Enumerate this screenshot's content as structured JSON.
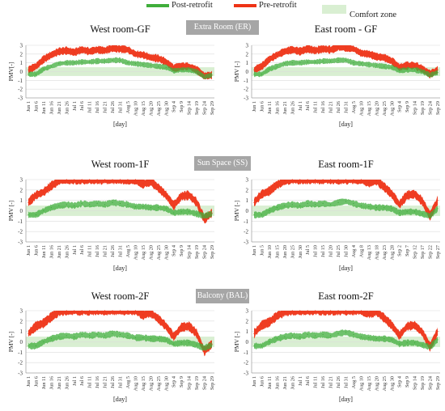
{
  "legend": {
    "post": {
      "label": "Post-retrofit",
      "color": "#3fae3b"
    },
    "pre": {
      "label": "Pre-retrofit",
      "color": "#ee3316"
    },
    "comfort": {
      "label": "Comfort zone",
      "color": "#d9efd2"
    }
  },
  "sections": [
    {
      "banner": "Extra Room (ER)"
    },
    {
      "banner": "Sun Space (SS)"
    },
    {
      "banner": "Balcony (BAL)"
    }
  ],
  "chart_data": [
    {
      "type": "area",
      "title": "West room-GF",
      "ylabel": "PMV[-]",
      "xlabel": "[day]",
      "ylim": [
        -3,
        3
      ],
      "comfort_zone": [
        -0.5,
        0.5
      ],
      "x": [
        "Jun 1",
        "Jun 6",
        "Jun 11",
        "Jun 16",
        "Jun 21",
        "Jun 26",
        "Jul 1",
        "Jul 6",
        "Jul 11",
        "Jul 16",
        "Jul 21",
        "Jul 26",
        "Jul 31",
        "Aug 5",
        "Aug 10",
        "Aug 15",
        "Aug 20",
        "Aug 25",
        "Aug 30",
        "Sep 4",
        "Sep 9",
        "Sep 14",
        "Sep 19",
        "Sep 24",
        "Sep 29"
      ],
      "series": [
        {
          "name": "Pre-retrofit",
          "values": [
            0.2,
            0.6,
            1.4,
            1.9,
            2.3,
            2.4,
            2.2,
            2.5,
            2.3,
            2.5,
            2.4,
            2.7,
            2.6,
            2.5,
            2.0,
            1.9,
            1.6,
            1.5,
            1.1,
            0.4,
            0.6,
            0.6,
            0.2,
            -0.5,
            -0.4
          ]
        },
        {
          "name": "Post-retrofit",
          "values": [
            -0.3,
            -0.3,
            0.3,
            0.6,
            0.9,
            1.0,
            1.0,
            1.1,
            1.1,
            1.2,
            1.2,
            1.3,
            1.3,
            1.0,
            0.9,
            0.8,
            0.7,
            0.6,
            0.5,
            0.1,
            0.2,
            0.2,
            0.0,
            -0.6,
            -0.4
          ]
        }
      ]
    },
    {
      "type": "area",
      "title": "East room - GF",
      "ylabel": "PMV [-]",
      "xlabel": "[day]",
      "ylim": [
        -3,
        3
      ],
      "comfort_zone": [
        -0.5,
        0.5
      ],
      "x": [
        "Jun 1",
        "Jun 6",
        "Jun 11",
        "Jun 16",
        "Jun 21",
        "Jun 26",
        "Jul 1",
        "Jul 6",
        "Jul 11",
        "Jul 16",
        "Jul 21",
        "Jul 26",
        "Jul 31",
        "Aug 5",
        "Aug 10",
        "Aug 15",
        "Aug 20",
        "Aug 25",
        "Aug 30",
        "Sep 4",
        "Sep 9",
        "Sep 14",
        "Sep 19",
        "Sep 24",
        "Sep 29"
      ],
      "series": [
        {
          "name": "Pre-retrofit",
          "values": [
            0.2,
            0.6,
            1.4,
            1.9,
            2.3,
            2.5,
            2.3,
            2.6,
            2.4,
            2.6,
            2.5,
            2.8,
            2.7,
            2.6,
            2.1,
            2.0,
            1.7,
            1.6,
            1.2,
            0.5,
            0.7,
            0.7,
            0.3,
            -0.3,
            0.2
          ]
        },
        {
          "name": "Post-retrofit",
          "values": [
            -0.3,
            -0.3,
            0.3,
            0.6,
            0.9,
            1.0,
            1.0,
            1.1,
            1.1,
            1.2,
            1.2,
            1.3,
            1.3,
            1.0,
            0.9,
            0.8,
            0.7,
            0.6,
            0.5,
            0.1,
            0.2,
            0.2,
            0.0,
            -0.4,
            -0.1
          ]
        }
      ]
    },
    {
      "type": "area",
      "title": "West room-1F",
      "ylabel": "PMV [-]",
      "xlabel": "[day]",
      "ylim": [
        -3,
        3
      ],
      "comfort_zone": [
        -0.5,
        0.5
      ],
      "x": [
        "Jun 1",
        "Jun 6",
        "Jun 11",
        "Jun 16",
        "Jun 21",
        "Jun 26",
        "Jul 1",
        "Jul 6",
        "Jul 11",
        "Jul 16",
        "Jul 21",
        "Jul 26",
        "Jul 31",
        "Aug 5",
        "Aug 10",
        "Aug 15",
        "Aug 20",
        "Aug 25",
        "Aug 30",
        "Sep 4",
        "Sep 9",
        "Sep 14",
        "Sep 19",
        "Sep 24",
        "Sep 29"
      ],
      "series": [
        {
          "name": "Pre-retrofit",
          "values": [
            0.8,
            1.5,
            1.8,
            2.4,
            2.9,
            3.0,
            3.0,
            3.0,
            3.0,
            3.0,
            3.0,
            3.0,
            3.0,
            3.0,
            3.0,
            2.6,
            2.8,
            2.2,
            1.5,
            0.5,
            1.4,
            1.5,
            0.8,
            -0.8,
            -0.2
          ]
        },
        {
          "name": "Post-retrofit",
          "values": [
            -0.4,
            -0.4,
            0.0,
            0.3,
            0.5,
            0.6,
            0.5,
            0.7,
            0.6,
            0.7,
            0.6,
            0.8,
            0.7,
            0.6,
            0.4,
            0.4,
            0.3,
            0.3,
            0.2,
            -0.2,
            -0.1,
            -0.1,
            -0.3,
            -0.5,
            -0.3
          ]
        }
      ]
    },
    {
      "type": "area",
      "title": "East room-1F",
      "ylabel": "PMV [-]",
      "xlabel": "[day]",
      "ylim": [
        -3,
        3
      ],
      "comfort_zone": [
        -0.5,
        0.5
      ],
      "x": [
        "Jun 1",
        "Jun 5",
        "Jun 10",
        "Jun 15",
        "Jun 20",
        "Jun 25",
        "Jun 30",
        "Jul 5",
        "Jul 10",
        "Jul 15",
        "Jul 20",
        "Jul 25",
        "Jul 30",
        "Aug 4",
        "Aug 8",
        "Aug 13",
        "Aug 18",
        "Aug 23",
        "Aug 28",
        "Sep 2",
        "Sep 7",
        "Sep 12",
        "Sep 17",
        "Sep 22",
        "Sep 27"
      ],
      "series": [
        {
          "name": "Pre-retrofit",
          "values": [
            0.8,
            1.6,
            1.9,
            2.5,
            2.9,
            3.0,
            3.0,
            3.0,
            3.0,
            3.0,
            3.0,
            3.0,
            3.0,
            3.0,
            3.0,
            2.7,
            2.9,
            2.3,
            1.6,
            0.6,
            1.5,
            1.6,
            0.9,
            -0.5,
            1.0
          ]
        },
        {
          "name": "Post-retrofit",
          "values": [
            -0.4,
            -0.4,
            0.0,
            0.3,
            0.5,
            0.6,
            0.5,
            0.7,
            0.6,
            0.7,
            0.6,
            0.8,
            0.9,
            0.7,
            0.5,
            0.4,
            0.3,
            0.3,
            0.2,
            -0.2,
            -0.1,
            -0.1,
            -0.3,
            -0.5,
            0.2
          ]
        }
      ]
    },
    {
      "type": "area",
      "title": "West room-2F",
      "ylabel": "PMV [-]",
      "xlabel": "[day]",
      "ylim": [
        -3,
        3
      ],
      "comfort_zone": [
        -0.5,
        0.5
      ],
      "x": [
        "Jun 1",
        "Jun 6",
        "Jun 11",
        "Jun 16",
        "Jun 21",
        "Jun 26",
        "Jul 1",
        "Jul 6",
        "Jul 11",
        "Jul 16",
        "Jul 21",
        "Jul 26",
        "Jul 31",
        "Aug 5",
        "Aug 10",
        "Aug 15",
        "Aug 20",
        "Aug 25",
        "Aug 30",
        "Sep 4",
        "Sep 9",
        "Sep 14",
        "Sep 19",
        "Sep 24",
        "Sep 29"
      ],
      "series": [
        {
          "name": "Pre-retrofit",
          "values": [
            0.8,
            1.5,
            1.8,
            2.4,
            2.9,
            3.0,
            3.0,
            3.0,
            3.0,
            3.0,
            3.0,
            3.0,
            3.0,
            3.0,
            3.0,
            2.6,
            2.8,
            2.2,
            1.5,
            0.5,
            1.4,
            1.5,
            0.8,
            -0.9,
            -0.2
          ]
        },
        {
          "name": "Post-retrofit",
          "values": [
            -0.4,
            -0.4,
            0.0,
            0.3,
            0.5,
            0.6,
            0.5,
            0.7,
            0.6,
            0.7,
            0.6,
            0.8,
            0.7,
            0.6,
            0.4,
            0.4,
            0.3,
            0.3,
            0.2,
            -0.2,
            -0.1,
            -0.1,
            -0.3,
            -0.6,
            -0.3
          ]
        }
      ]
    },
    {
      "type": "area",
      "title": "East room-2F",
      "ylabel": "PMV [-]",
      "xlabel": "[day]",
      "ylim": [
        -3,
        3
      ],
      "comfort_zone": [
        -0.5,
        0.5
      ],
      "x": [
        "Jun 1",
        "Jun 6",
        "Jun 11",
        "Jun 16",
        "Jun 21",
        "Jun 26",
        "Jul 1",
        "Jul 6",
        "Jul 11",
        "Jul 16",
        "Jul 21",
        "Jul 26",
        "Jul 31",
        "Aug 5",
        "Aug 10",
        "Aug 15",
        "Aug 20",
        "Aug 25",
        "Aug 30",
        "Sep 4",
        "Sep 9",
        "Sep 14",
        "Sep 19",
        "Sep 24",
        "Sep 29"
      ],
      "series": [
        {
          "name": "Pre-retrofit",
          "values": [
            0.8,
            1.6,
            1.9,
            2.5,
            2.9,
            3.0,
            3.0,
            3.0,
            3.0,
            3.0,
            3.0,
            3.0,
            3.0,
            3.0,
            3.0,
            2.7,
            2.9,
            2.3,
            1.6,
            0.6,
            1.5,
            1.6,
            0.9,
            -0.5,
            1.0
          ]
        },
        {
          "name": "Post-retrofit",
          "values": [
            -0.4,
            -0.4,
            0.0,
            0.3,
            0.5,
            0.6,
            0.5,
            0.7,
            0.6,
            0.7,
            0.6,
            0.8,
            0.9,
            0.7,
            0.5,
            0.4,
            0.3,
            0.3,
            0.2,
            -0.2,
            -0.1,
            -0.1,
            -0.3,
            -0.5,
            0.2
          ]
        }
      ]
    }
  ]
}
